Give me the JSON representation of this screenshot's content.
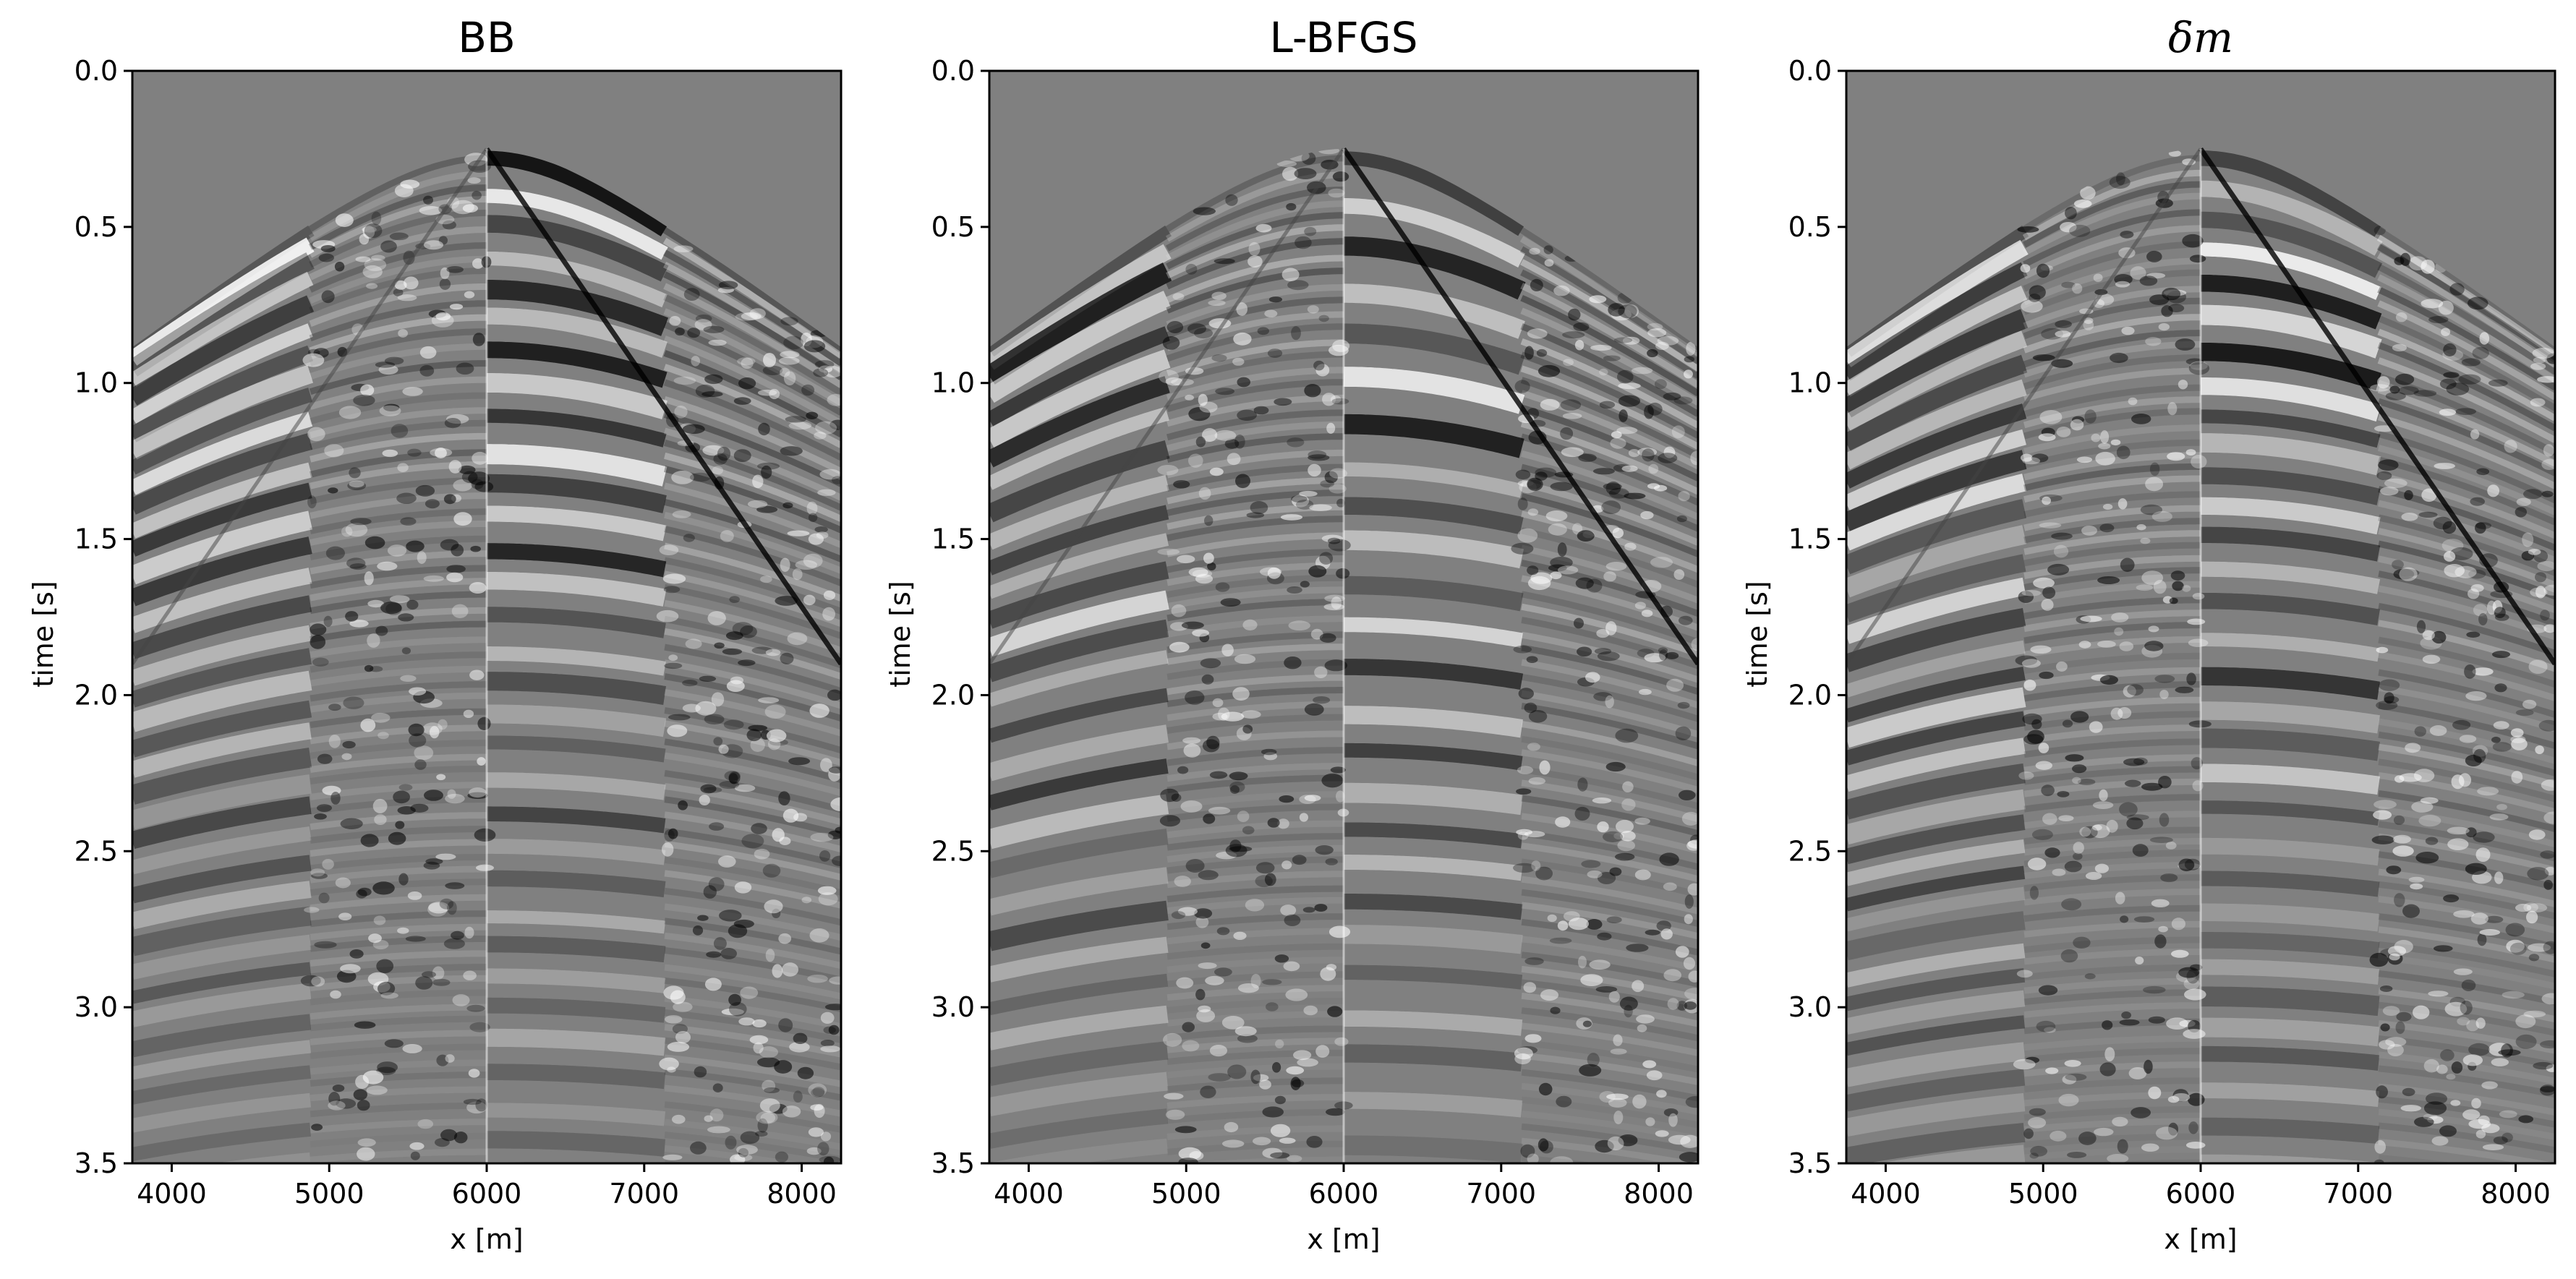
{
  "chart_data": [
    {
      "type": "heatmap",
      "title": "BB",
      "xlabel": "x [m]",
      "ylabel": "time [s]",
      "xlim": [
        3750,
        8250
      ],
      "ylim": [
        3.5,
        0.0
      ],
      "xticks": [
        "4000",
        "5000",
        "6000",
        "7000",
        "8000"
      ],
      "xtick_values": [
        4000,
        5000,
        6000,
        7000,
        8000
      ],
      "yticks": [
        "0.0",
        "0.5",
        "1.0",
        "1.5",
        "2.0",
        "2.5",
        "3.0",
        "3.5"
      ],
      "ytick_values": [
        0.0,
        0.5,
        1.0,
        1.5,
        2.0,
        2.5,
        3.0,
        3.5
      ],
      "colormap": "gray",
      "apex_x": 6000,
      "apex_t": 0.25
    },
    {
      "type": "heatmap",
      "title": "L-BFGS",
      "xlabel": "x [m]",
      "ylabel": "time [s]",
      "xlim": [
        3750,
        8250
      ],
      "ylim": [
        3.5,
        0.0
      ],
      "xticks": [
        "4000",
        "5000",
        "6000",
        "7000",
        "8000"
      ],
      "xtick_values": [
        4000,
        5000,
        6000,
        7000,
        8000
      ],
      "yticks": [
        "0.0",
        "0.5",
        "1.0",
        "1.5",
        "2.0",
        "2.5",
        "3.0",
        "3.5"
      ],
      "ytick_values": [
        0.0,
        0.5,
        1.0,
        1.5,
        2.0,
        2.5,
        3.0,
        3.5
      ],
      "colormap": "gray",
      "apex_x": 6000,
      "apex_t": 0.25
    },
    {
      "type": "heatmap",
      "title": "δm",
      "xlabel": "x [m]",
      "ylabel": "time [s]",
      "xlim": [
        3750,
        8250
      ],
      "ylim": [
        3.5,
        0.0
      ],
      "xticks": [
        "4000",
        "5000",
        "6000",
        "7000",
        "8000"
      ],
      "xtick_values": [
        4000,
        5000,
        6000,
        7000,
        8000
      ],
      "yticks": [
        "0.0",
        "0.5",
        "1.0",
        "1.5",
        "2.0",
        "2.5",
        "3.0",
        "3.5"
      ],
      "ytick_values": [
        0.0,
        0.5,
        1.0,
        1.5,
        2.0,
        2.5,
        3.0,
        3.5
      ],
      "colormap": "gray",
      "apex_x": 6000,
      "apex_t": 0.25
    }
  ],
  "colors": {
    "background": "#808080",
    "axis": "#000000"
  }
}
